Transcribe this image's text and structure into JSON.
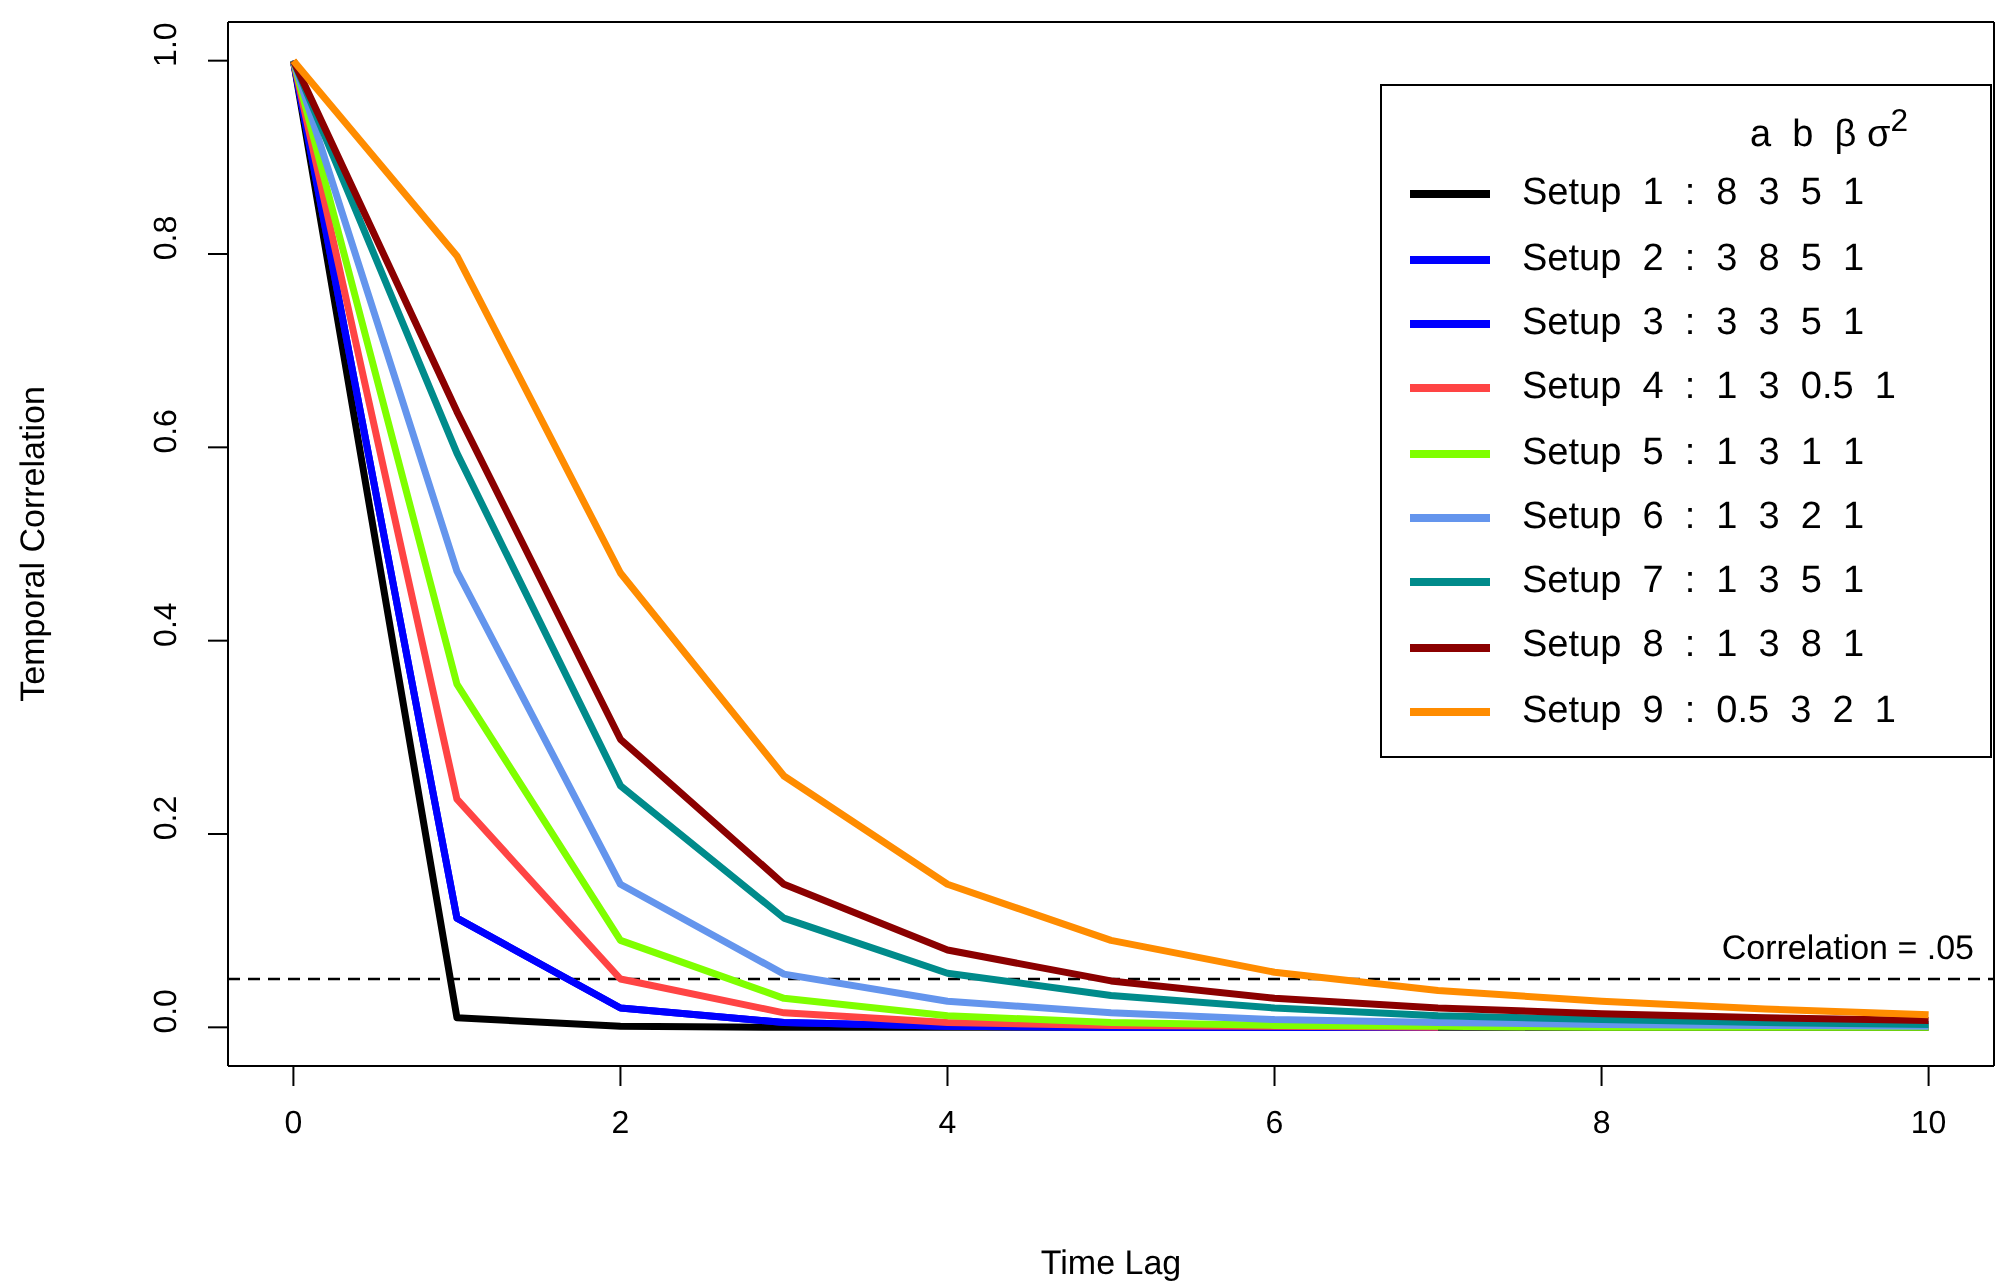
{
  "chart_data": {
    "type": "line",
    "xlabel": "Time Lag",
    "ylabel": "Temporal Correlation",
    "legend_title": "a  b  β σ$^{2}$",
    "x": [
      0,
      1,
      2,
      3,
      4,
      5,
      6,
      7,
      8,
      9,
      10
    ],
    "series": [
      {
        "name": "Setup  1  :  8  3  5  1",
        "color": "#000000",
        "values": [
          1,
          0.01,
          0.001,
          0,
          0,
          0,
          0,
          0,
          0,
          0,
          0
        ]
      },
      {
        "name": "Setup  2  :  3  8  5  1",
        "color": "#0000ff",
        "values": [
          1,
          0.113,
          0.02,
          0.005,
          0.001,
          0,
          0,
          0,
          null,
          null,
          null
        ]
      },
      {
        "name": "Setup  3  :  3  3  5  1",
        "color": "#0000ff",
        "values": [
          1,
          0.113,
          0.02,
          0.005,
          0.001,
          0,
          0,
          0,
          null,
          null,
          null
        ]
      },
      {
        "name": "Setup  4  :  1  3  0.5  1",
        "color": "#ff4444",
        "values": [
          1,
          0.236,
          0.05,
          0.015,
          0.005,
          0.002,
          0.001,
          0,
          null,
          null,
          null
        ]
      },
      {
        "name": "Setup  5  :  1  3  1  1",
        "color": "#7fff00",
        "values": [
          1,
          0.355,
          0.09,
          0.03,
          0.012,
          0.005,
          0.002,
          0.001,
          0,
          0,
          0
        ]
      },
      {
        "name": "Setup  6  :  1  3  2  1",
        "color": "#6495ed",
        "values": [
          1,
          0.472,
          0.148,
          0.055,
          0.027,
          0.015,
          0.008,
          0.005,
          0.003,
          0.002,
          0.001
        ]
      },
      {
        "name": "Setup  7  :  1  3  5  1",
        "color": "#008b8b",
        "values": [
          1,
          0.594,
          0.25,
          0.113,
          0.056,
          0.033,
          0.02,
          0.012,
          0.008,
          0.005,
          0.003
        ]
      },
      {
        "name": "Setup  8  :  1  3  8  1",
        "color": "#8b0000",
        "values": [
          1,
          0.637,
          0.298,
          0.148,
          0.08,
          0.048,
          0.03,
          0.02,
          0.014,
          0.01,
          0.007
        ]
      },
      {
        "name": "Setup  9  :  0.5  3  2  1",
        "color": "#ff8c00",
        "values": [
          1,
          0.798,
          0.47,
          0.26,
          0.148,
          0.09,
          0.057,
          0.038,
          0.027,
          0.019,
          0.013
        ]
      }
    ],
    "xlim": [
      -0.4,
      10.4
    ],
    "xticks": [
      0,
      2,
      4,
      6,
      8,
      10
    ],
    "ylim": [
      -0.04,
      1.04
    ],
    "yticks": [
      {
        "value": 0,
        "label": "0.0"
      },
      {
        "value": 0.2,
        "label": "0.2"
      },
      {
        "value": 0.4,
        "label": "0.4"
      },
      {
        "value": 0.6,
        "label": "0.6"
      },
      {
        "value": 0.8,
        "label": "0.8"
      },
      {
        "value": 1,
        "label": "1.0"
      }
    ],
    "ref_lines": [
      {
        "axis": "y",
        "value": 0.05,
        "label": "Correlation = .05",
        "color": "#000000",
        "line_style": "dashed"
      }
    ],
    "grid": false,
    "legend": "top right",
    "marker": "none",
    "line_style": "solid"
  }
}
